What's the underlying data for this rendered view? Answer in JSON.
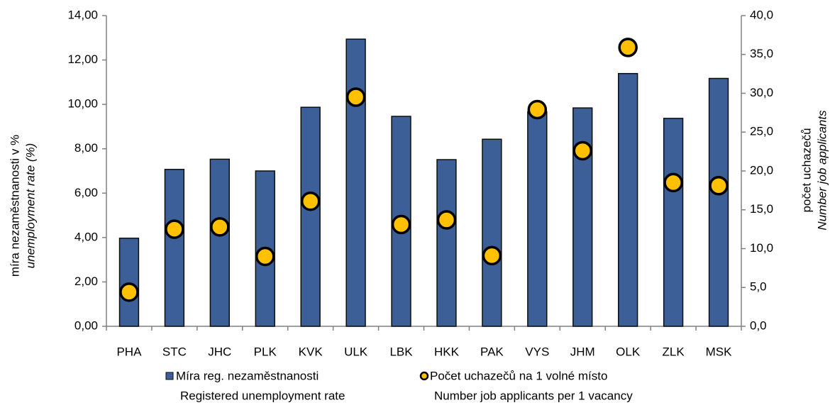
{
  "chart_data": {
    "type": "bar_scatter",
    "categories": [
      "PHA",
      "STC",
      "JHC",
      "PLK",
      "KVK",
      "ULK",
      "LBK",
      "HKK",
      "PAK",
      "VYS",
      "JHM",
      "OLK",
      "ZLK",
      "MSK"
    ],
    "series": [
      {
        "name": "Míra reg. nezaměstnanosti",
        "name_en": "Registered unemployment rate",
        "type": "bar",
        "color": "#3c5f97",
        "axis": "y",
        "values": [
          3.97,
          7.07,
          7.53,
          7.0,
          9.87,
          12.94,
          9.46,
          7.51,
          8.43,
          9.67,
          9.84,
          11.39,
          9.37,
          11.17
        ]
      },
      {
        "name": "Počet uchazečů na 1 volné místo",
        "name_en": "Number job applicants per 1 vacancy",
        "type": "scatter",
        "color": "#ffc000",
        "axis": "y2",
        "values": [
          4.4,
          12.5,
          12.8,
          9.0,
          16.1,
          29.5,
          13.1,
          13.7,
          9.1,
          27.9,
          22.6,
          35.9,
          18.5,
          18.1
        ]
      }
    ],
    "ylabel": [
      "míra nezaměstnanosti v %",
      "unemployment  rate (%)"
    ],
    "y2label": [
      "počet uchazečů",
      "Number job applicants"
    ],
    "ylim": [
      0,
      14
    ],
    "yticks": [
      {
        "value": 0,
        "label": "0,00"
      },
      {
        "value": 2,
        "label": "2,00"
      },
      {
        "value": 4,
        "label": "4,00"
      },
      {
        "value": 6,
        "label": "6,00"
      },
      {
        "value": 8,
        "label": "8,00"
      },
      {
        "value": 10,
        "label": "10,00"
      },
      {
        "value": 12,
        "label": "12,00"
      },
      {
        "value": 14,
        "label": "14,00"
      }
    ],
    "y2lim": [
      0,
      40
    ],
    "y2ticks": [
      {
        "value": 0,
        "label": "0,0"
      },
      {
        "value": 5,
        "label": "5,0"
      },
      {
        "value": 10,
        "label": "10,0"
      },
      {
        "value": 15,
        "label": "15,0"
      },
      {
        "value": 20,
        "label": "20,0"
      },
      {
        "value": 25,
        "label": "25,0"
      },
      {
        "value": 30,
        "label": "30,0"
      },
      {
        "value": 35,
        "label": "35,0"
      },
      {
        "value": 40,
        "label": "40,0"
      }
    ],
    "grid": false
  }
}
